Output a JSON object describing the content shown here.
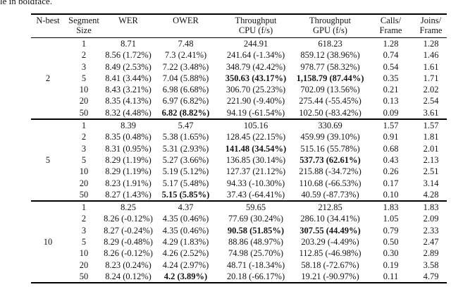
{
  "caption_fragment": "le in boldface.",
  "colors": {
    "background": "#ffffff",
    "text": "#141414",
    "rule": "#000000"
  },
  "table": {
    "column_keys": [
      "seg",
      "wer",
      "ower",
      "cpu",
      "gpu",
      "calls",
      "joins"
    ],
    "headers": [
      {
        "key": "nbest",
        "line1": "N-best",
        "line2": ""
      },
      {
        "key": "seg",
        "line1": "Segment",
        "line2": "Size"
      },
      {
        "key": "wer",
        "line1": "WER",
        "line2": ""
      },
      {
        "key": "ower",
        "line1": "OWER",
        "line2": ""
      },
      {
        "key": "cpu",
        "line1": "Throughput",
        "line2": "CPU (f/s)"
      },
      {
        "key": "gpu",
        "line1": "Throughput",
        "line2": "GPU (f/s)"
      },
      {
        "key": "calls",
        "line1": "Calls/",
        "line2": "Frame"
      },
      {
        "key": "joins",
        "line1": "Joins/",
        "line2": "Frame"
      }
    ],
    "groups": [
      {
        "nbest": "2",
        "rows": [
          {
            "seg": "1",
            "wer": "8.71",
            "ower": "7.48",
            "cpu": "244.91",
            "gpu": "618.23",
            "calls": "1.28",
            "joins": "1.28",
            "bold": []
          },
          {
            "seg": "2",
            "wer": "8.56 (1.72%)",
            "ower": "7.3 (2.41%)",
            "cpu": "241.64 (-1.34%)",
            "gpu": "859.12 (38.96%)",
            "calls": "0.74",
            "joins": "1.46",
            "bold": []
          },
          {
            "seg": "3",
            "wer": "8.49 (2.53%)",
            "ower": "7.22 (3.48%)",
            "cpu": "348.79 (42.42%)",
            "gpu": "978.77 (58.32%)",
            "calls": "0.54",
            "joins": "1.61",
            "bold": []
          },
          {
            "seg": "5",
            "wer": "8.41 (3.44%)",
            "ower": "7.04 (5.88%)",
            "cpu": "350.63 (43.17%)",
            "gpu": "1,158.79 (87.44%)",
            "calls": "0.35",
            "joins": "1.71",
            "bold": [
              "cpu",
              "gpu"
            ]
          },
          {
            "seg": "10",
            "wer": "8.43 (3.21%)",
            "ower": "6.98 (6.68%)",
            "cpu": "306.70 (25.23%)",
            "gpu": "702.09 (13.56%)",
            "calls": "0.21",
            "joins": "2.02",
            "bold": []
          },
          {
            "seg": "20",
            "wer": "8.35 (4.13%)",
            "ower": "6.97 (6.82%)",
            "cpu": "221.90 (-9.40%)",
            "gpu": "275.44 (-55.45%)",
            "calls": "0.13",
            "joins": "2.54",
            "bold": []
          },
          {
            "seg": "50",
            "wer": "8.32 (4.48%)",
            "ower": "6.82 (8.82%)",
            "cpu": "94.19 (-61.54%)",
            "gpu": "102.50 (-83.42%)",
            "calls": "0.09",
            "joins": "3.61",
            "bold": [
              "ower"
            ]
          }
        ]
      },
      {
        "nbest": "5",
        "rows": [
          {
            "seg": "1",
            "wer": "8.39",
            "ower": "5.47",
            "cpu": "105.16",
            "gpu": "330.69",
            "calls": "1.57",
            "joins": "1.57",
            "bold": []
          },
          {
            "seg": "2",
            "wer": "8.35 (0.48%)",
            "ower": "5.38 (1.65%)",
            "cpu": "128.45 (22.15%)",
            "gpu": "459.99 (39.10%)",
            "calls": "0.91",
            "joins": "1.81",
            "bold": []
          },
          {
            "seg": "3",
            "wer": "8.31 (0.95%)",
            "ower": "5.31 (2.93%)",
            "cpu": "141.48 (34.54%)",
            "gpu": "515.16 (55.78%)",
            "calls": "0.68",
            "joins": "2.01",
            "bold": [
              "cpu"
            ]
          },
          {
            "seg": "5",
            "wer": "8.29 (1.19%)",
            "ower": "5.27 (3.66%)",
            "cpu": "136.85 (30.14%)",
            "gpu": "537.73 (62.61%)",
            "calls": "0.43",
            "joins": "2.13",
            "bold": [
              "gpu"
            ]
          },
          {
            "seg": "10",
            "wer": "8.29 (1.19%)",
            "ower": "5.19 (5.12%)",
            "cpu": "127.37 (21.12%)",
            "gpu": "215.88 (-34.72%)",
            "calls": "0.26",
            "joins": "2.51",
            "bold": []
          },
          {
            "seg": "20",
            "wer": "8.23 (1.91%)",
            "ower": "5.17 (5.48%)",
            "cpu": "94.33 (-10.30%)",
            "gpu": "110.68 (-66.53%)",
            "calls": "0.17",
            "joins": "3.14",
            "bold": []
          },
          {
            "seg": "50",
            "wer": "8.27 (1.43%)",
            "ower": "5.15 (5.85%)",
            "cpu": "37.43 (-64.41%)",
            "gpu": "40.59 (-87.73%)",
            "calls": "0.10",
            "joins": "4.28",
            "bold": [
              "ower"
            ]
          }
        ]
      },
      {
        "nbest": "10",
        "rows": [
          {
            "seg": "1",
            "wer": "8.25",
            "ower": "4.37",
            "cpu": "59.65",
            "gpu": "212.85",
            "calls": "1.83",
            "joins": "1.83",
            "bold": []
          },
          {
            "seg": "2",
            "wer": "8.26 (-0.12%)",
            "ower": "4.35 (0.46%)",
            "cpu": "77.69 (30.24%)",
            "gpu": "286.10 (34.41%)",
            "calls": "1.05",
            "joins": "2.09",
            "bold": []
          },
          {
            "seg": "3",
            "wer": "8.27 (-0.24%)",
            "ower": "4.35 (0.46%)",
            "cpu": "90.58 (51.85%)",
            "gpu": "307.55 (44.49%)",
            "calls": "0.79",
            "joins": "2.33",
            "bold": [
              "cpu",
              "gpu"
            ]
          },
          {
            "seg": "5",
            "wer": "8.29 (-0.48%)",
            "ower": "4.29 (1.83%)",
            "cpu": "88.86 (48.97%)",
            "gpu": "203.29 (-4.49%)",
            "calls": "0.50",
            "joins": "2.47",
            "bold": []
          },
          {
            "seg": "10",
            "wer": "8.26 (-0.12%)",
            "ower": "4.26 (2.52%)",
            "cpu": "74.98 (25.70%)",
            "gpu": "112.85 (-46.98%)",
            "calls": "0.30",
            "joins": "2.89",
            "bold": []
          },
          {
            "seg": "20",
            "wer": "8.23 (0.24%)",
            "ower": "4.24 (2.97%)",
            "cpu": "48.71 (-18.34%)",
            "gpu": "58.18 (-72.67%)",
            "calls": "0.19",
            "joins": "3.58",
            "bold": []
          },
          {
            "seg": "50",
            "wer": "8.24 (0.12%)",
            "ower": "4.2 (3.89%)",
            "cpu": "20.18 (-66.17%)",
            "gpu": "19.21 (-90.97%)",
            "calls": "0.11",
            "joins": "4.79",
            "bold": [
              "ower"
            ]
          }
        ]
      }
    ]
  }
}
